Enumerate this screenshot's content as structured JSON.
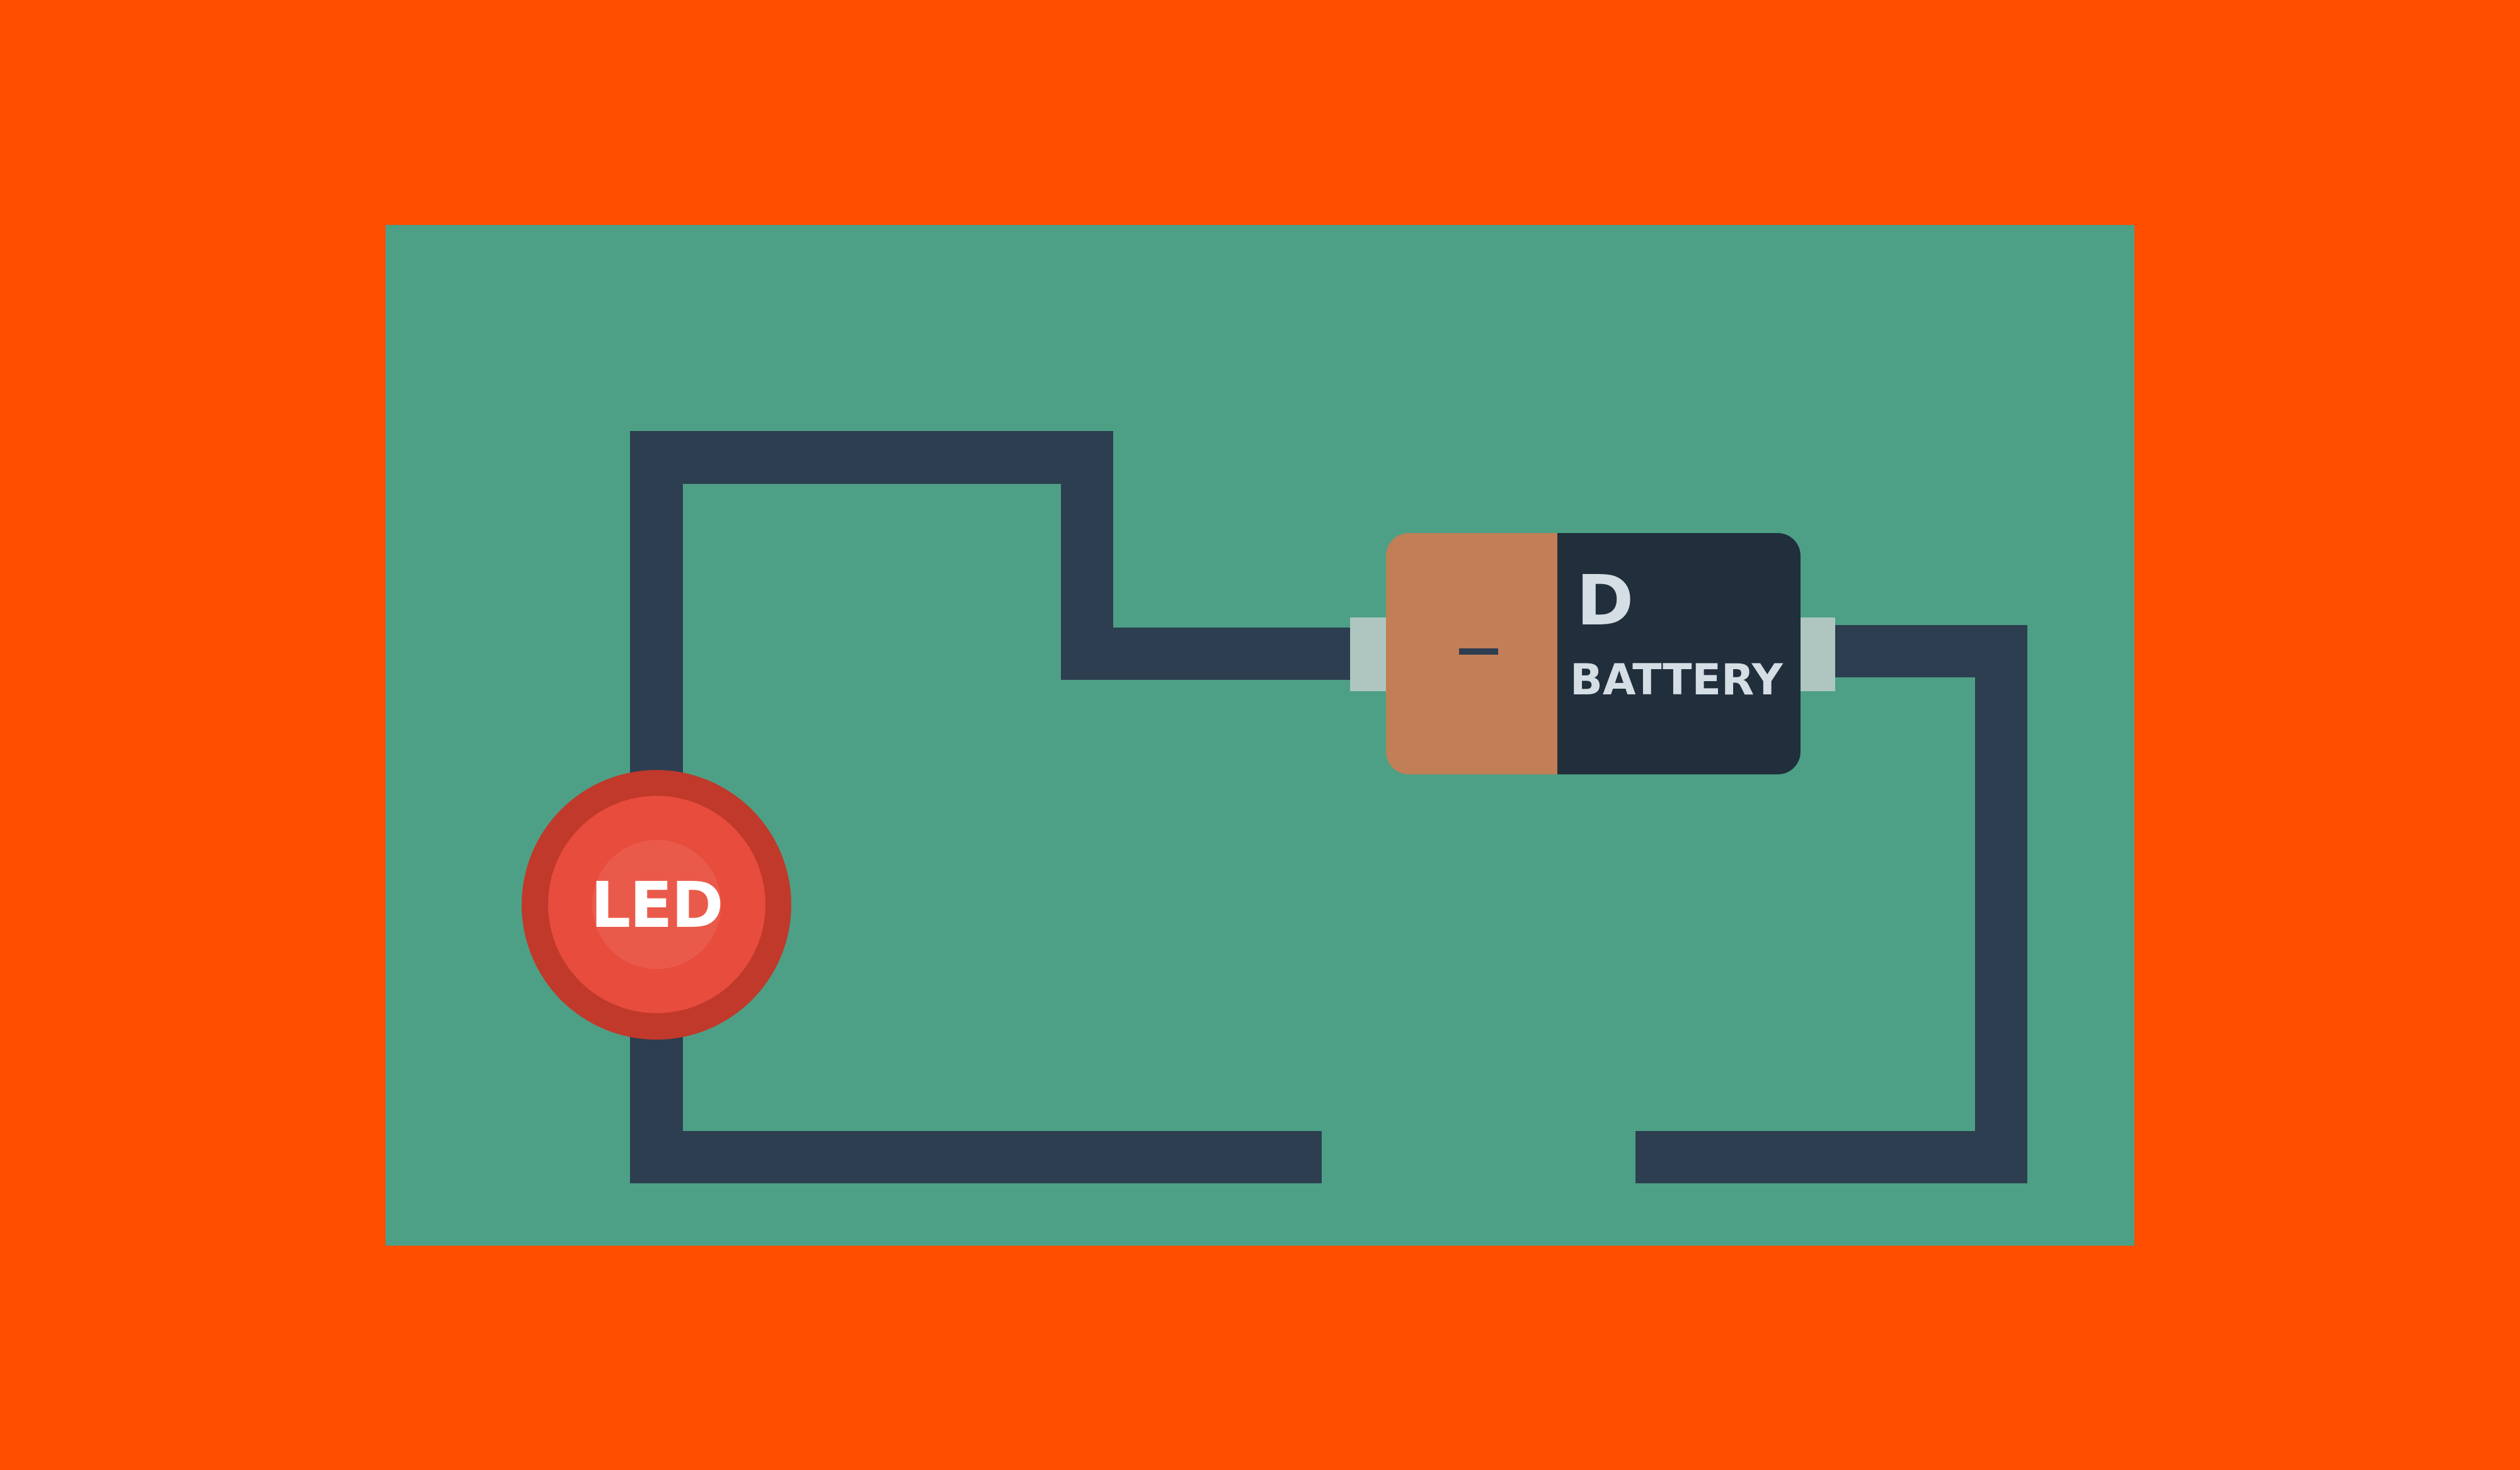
{
  "diagram": {
    "led": {
      "label": "LED",
      "color_outer": "#C0392B",
      "color_inner": "#E74C3C"
    },
    "battery": {
      "size_label": "D",
      "type_label": "BATTERY",
      "negative_symbol": "–",
      "color_negative_end": "#C17E57",
      "color_body": "#212E3B"
    },
    "colors": {
      "background": "#FF4E00",
      "board": "#4DA085",
      "wire": "#2D3E50",
      "terminal": "#AEC6BF"
    }
  }
}
